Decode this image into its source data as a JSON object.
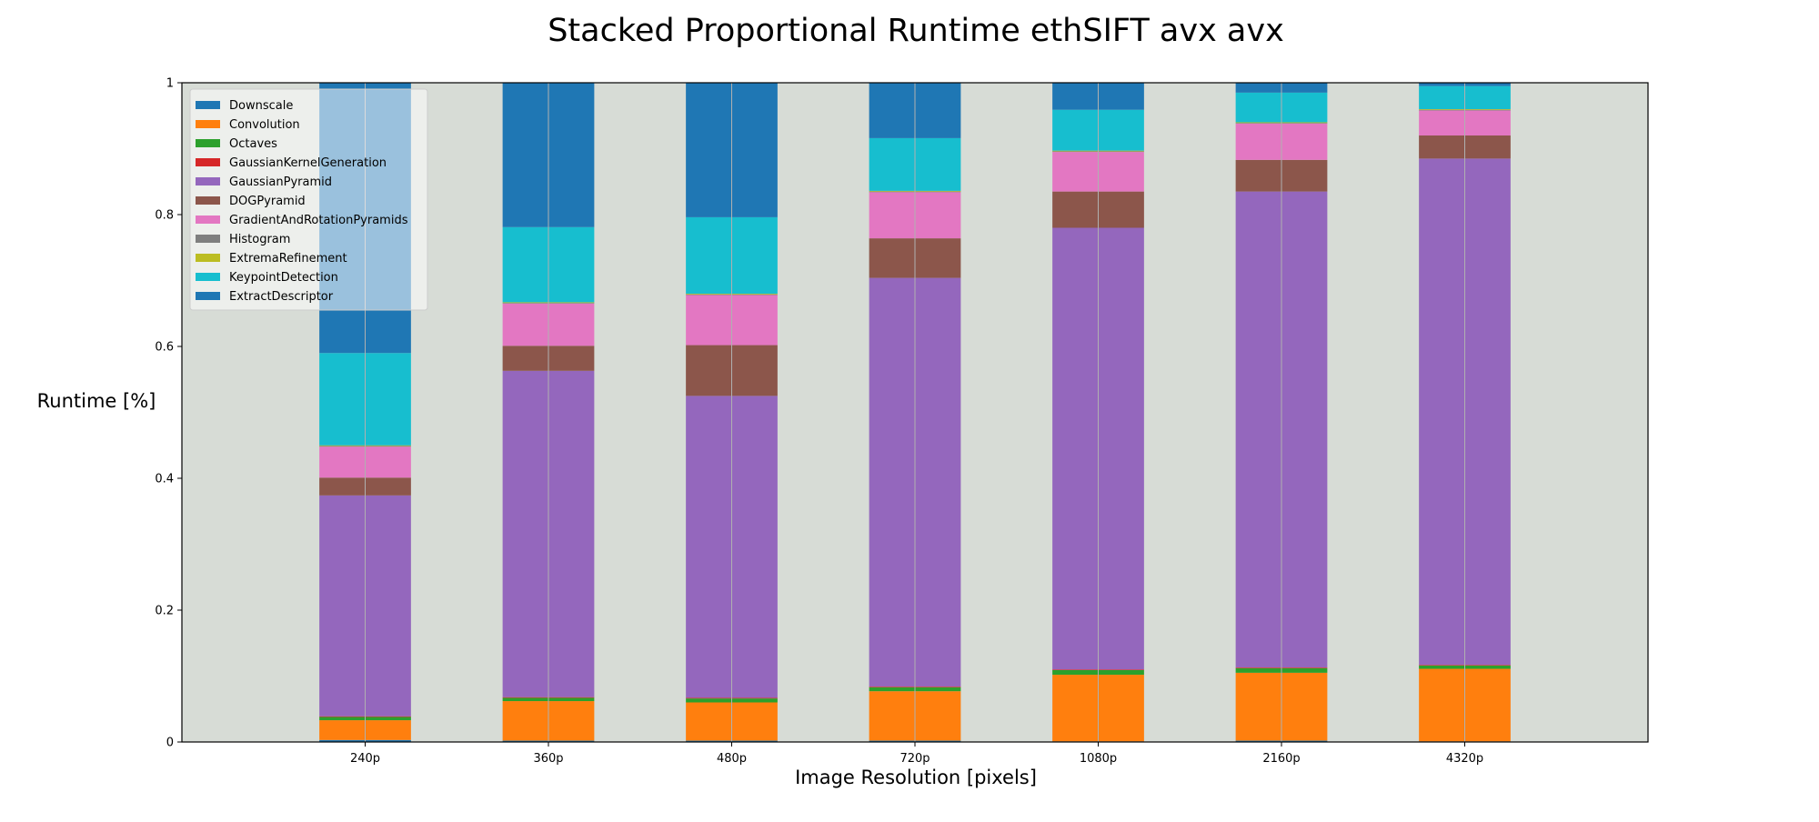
{
  "chart_data": {
    "type": "bar",
    "stacked": true,
    "title": "Stacked Proportional Runtime ethSIFT avx avx",
    "xlabel": "Image Resolution [pixels]",
    "ylabel": "Runtime [%]",
    "ylim": [
      0,
      1
    ],
    "y_ticks": [
      "0",
      "0.2",
      "0.4",
      "0.6",
      "0.8",
      "1"
    ],
    "y_tick_values": [
      0,
      0.2,
      0.4,
      0.6,
      0.8,
      1
    ],
    "grid": "vertical",
    "legend_position": "top-left",
    "background": "#d7dcd6",
    "categories": [
      "240p",
      "360p",
      "480p",
      "720p",
      "1080p",
      "2160p",
      "4320p"
    ],
    "series": [
      {
        "name": "Downscale",
        "color": "#1f77b4",
        "values": [
          0.003,
          0.002,
          0.002,
          0.002,
          0.001,
          0.002,
          0.001
        ]
      },
      {
        "name": "Convolution",
        "color": "#ff7f0e",
        "values": [
          0.03,
          0.06,
          0.058,
          0.075,
          0.101,
          0.103,
          0.11
        ]
      },
      {
        "name": "Octaves",
        "color": "#2ca02c",
        "values": [
          0.005,
          0.005,
          0.006,
          0.006,
          0.007,
          0.007,
          0.005
        ]
      },
      {
        "name": "GaussianKernelGeneration",
        "color": "#d62728",
        "values": [
          0.001,
          0.001,
          0.001,
          0.001,
          0.001,
          0.001,
          0.001
        ]
      },
      {
        "name": "GaussianPyramid",
        "color": "#9467bd",
        "values": [
          0.335,
          0.495,
          0.458,
          0.62,
          0.67,
          0.722,
          0.768
        ]
      },
      {
        "name": "DOGPyramid",
        "color": "#8c564b",
        "values": [
          0.027,
          0.038,
          0.077,
          0.06,
          0.055,
          0.048,
          0.035
        ]
      },
      {
        "name": "GradientAndRotationPyramids",
        "color": "#e377c2",
        "values": [
          0.047,
          0.064,
          0.076,
          0.07,
          0.06,
          0.055,
          0.038
        ]
      },
      {
        "name": "Histogram",
        "color": "#7f7f7f",
        "values": [
          0.001,
          0.001,
          0.001,
          0.001,
          0.001,
          0.001,
          0.001
        ]
      },
      {
        "name": "ExtremaRefinement",
        "color": "#bcbd22",
        "values": [
          0.001,
          0.001,
          0.001,
          0.001,
          0.001,
          0.001,
          0.001
        ]
      },
      {
        "name": "KeypointDetection",
        "color": "#17becf",
        "values": [
          0.14,
          0.114,
          0.116,
          0.08,
          0.062,
          0.045,
          0.035
        ]
      },
      {
        "name": "ExtractDescriptor",
        "color": "#1f77b4",
        "values": [
          0.41,
          0.219,
          0.204,
          0.084,
          0.041,
          0.015,
          0.005
        ]
      }
    ]
  }
}
